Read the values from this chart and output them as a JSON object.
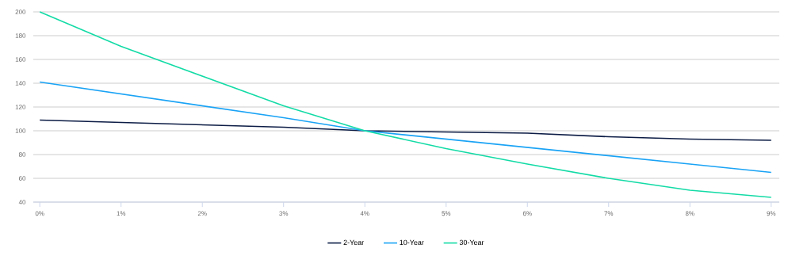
{
  "chart_data": {
    "type": "line",
    "x": [
      0,
      1,
      2,
      3,
      4,
      5,
      6,
      7,
      8,
      9
    ],
    "series": [
      {
        "name": "2-Year",
        "color": "#0c1c45",
        "values": [
          109,
          107,
          105,
          103,
          100,
          99,
          98,
          95,
          93,
          92
        ]
      },
      {
        "name": "10-Year",
        "color": "#1aa3f5",
        "values": [
          141,
          131,
          121,
          111,
          100,
          93,
          86,
          79,
          72,
          65
        ]
      },
      {
        "name": "30-Year",
        "color": "#13dba6",
        "values": [
          200,
          171,
          146,
          121,
          100,
          85,
          72,
          60,
          50,
          44
        ]
      }
    ],
    "xlim": [
      -0.08,
      9.1
    ],
    "xticks": [
      {
        "value": 0,
        "label": "0%"
      },
      {
        "value": 1,
        "label": "1%"
      },
      {
        "value": 2,
        "label": "2%"
      },
      {
        "value": 3,
        "label": "3%"
      },
      {
        "value": 4,
        "label": "4%"
      },
      {
        "value": 5,
        "label": "5%"
      },
      {
        "value": 6,
        "label": "6%"
      },
      {
        "value": 7,
        "label": "7%"
      },
      {
        "value": 8,
        "label": "8%"
      },
      {
        "value": 9,
        "label": "9%"
      }
    ],
    "ylim": [
      40,
      200
    ],
    "yticks": [
      40,
      60,
      80,
      100,
      120,
      140,
      160,
      180,
      200
    ],
    "grid": "y",
    "legend": "bottom",
    "marker": "none",
    "line_style": "solid"
  }
}
